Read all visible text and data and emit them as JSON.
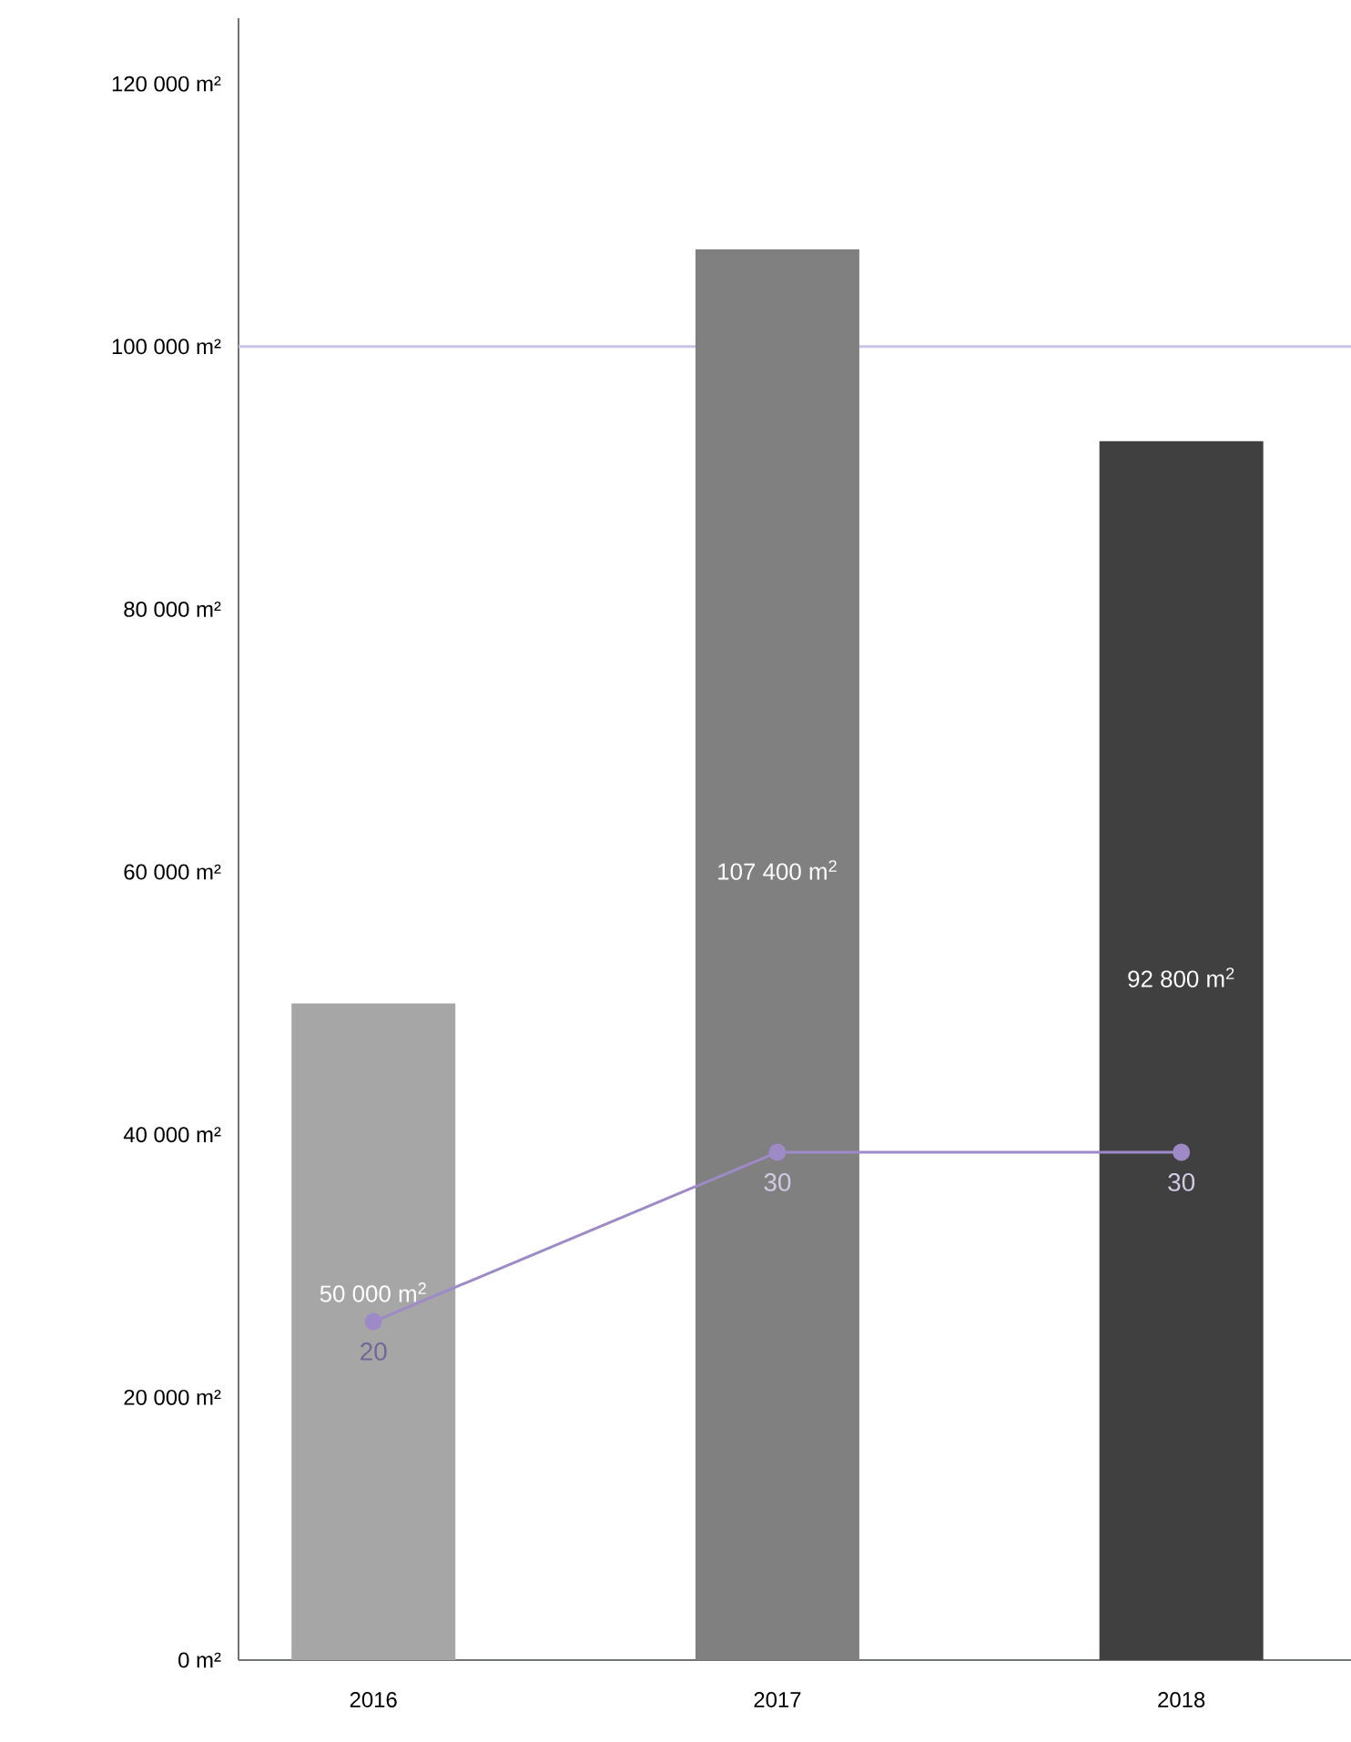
{
  "chart_data": {
    "type": "bar",
    "categories": [
      "2016",
      "2017",
      "2018"
    ],
    "ylim": [
      0,
      125000
    ],
    "yticks": [
      {
        "value": 0,
        "label": "0 m²"
      },
      {
        "value": 20000,
        "label": "20 000 m²"
      },
      {
        "value": 40000,
        "label": "40 000 m²"
      },
      {
        "value": 60000,
        "label": "60 000 m²"
      },
      {
        "value": 80000,
        "label": "80 000 m²"
      },
      {
        "value": 100000,
        "label": "100 000 m²"
      },
      {
        "value": 120000,
        "label": "120 000 m²"
      }
    ],
    "y2lim": [
      0,
      97
    ],
    "grid": false,
    "series": [
      {
        "colors": [
          "#a6a6a6",
          "#808080",
          "#404040"
        ],
        "values": [
          50000,
          107400,
          92800
        ],
        "value_labels": [
          "50 000 m$^{2}$",
          "107 400 m$^{2}$",
          "92 800 m$^{2}$"
        ]
      },
      {
        "type": "line",
        "axis": "y2",
        "color": "#9d8ac7",
        "marker": "circle",
        "line_style": "solid",
        "values": [
          20,
          30,
          30
        ],
        "value_labels": [
          "20",
          "30",
          "30"
        ]
      }
    ],
    "ref_lines": [
      {
        "axis": "y",
        "value": 100000,
        "color": "#cbc3e3"
      }
    ]
  }
}
